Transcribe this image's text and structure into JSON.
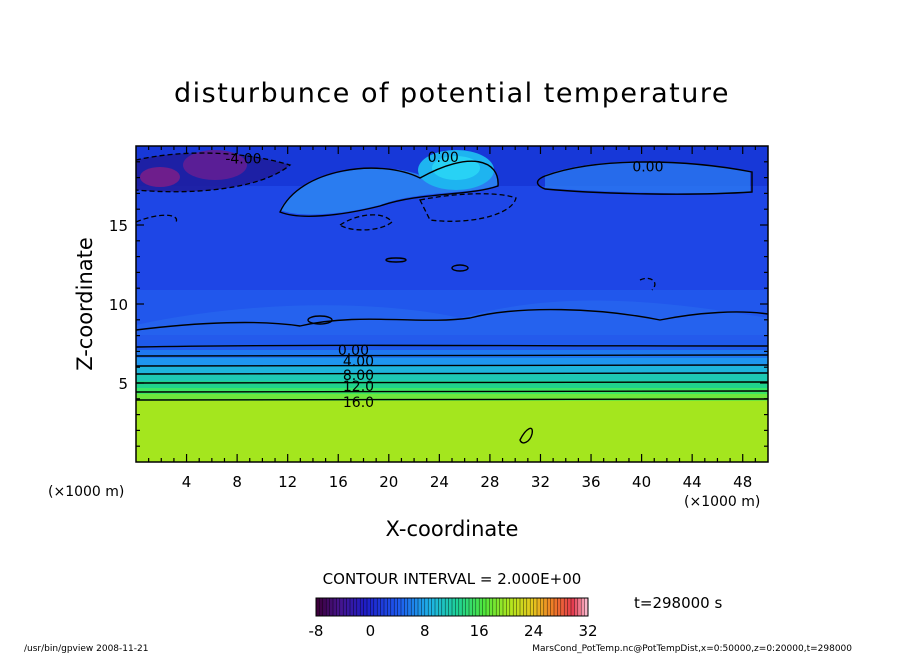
{
  "chart_data": {
    "type": "heatmap",
    "title": "disturbunce of potential temperature",
    "xlabel": "X-coordinate",
    "ylabel": "Z-coordinate",
    "x_unit": "(×1000 m)",
    "y_unit": "(×1000 m)",
    "xlim": [
      0,
      50
    ],
    "ylim": [
      0,
      20
    ],
    "x_ticks": [
      4,
      8,
      12,
      16,
      20,
      24,
      28,
      32,
      36,
      40,
      44,
      48
    ],
    "y_ticks": [
      5,
      10,
      15
    ],
    "contour_interval_label": "CONTOUR INTERVAL = 2.000E+00",
    "time_label": "t=298000 s",
    "colorbar": {
      "min": -8,
      "max": 32,
      "ticks": [
        -8,
        0,
        8,
        16,
        24,
        32
      ]
    },
    "contour_labels": [
      {
        "text": "-4.00",
        "x": 8.5,
        "y": 19.2
      },
      {
        "text": "0.00",
        "x": 24.3,
        "y": 19.3
      },
      {
        "text": "0.00",
        "x": 40.5,
        "y": 18.7
      },
      {
        "text": "0.00",
        "x": 17.2,
        "y": 7.1
      },
      {
        "text": "4.00",
        "x": 17.6,
        "y": 6.4
      },
      {
        "text": "8.00",
        "x": 17.6,
        "y": 5.5
      },
      {
        "text": "12.0",
        "x": 17.6,
        "y": 4.8
      },
      {
        "text": "16.0",
        "x": 17.6,
        "y": 3.8
      }
    ]
  },
  "footer": {
    "left": "/usr/bin/gpview   2008-11-21",
    "right": "MarsCond_PotTemp.nc@PotTempDist,x=0:50000,z=0:20000,t=298000"
  }
}
